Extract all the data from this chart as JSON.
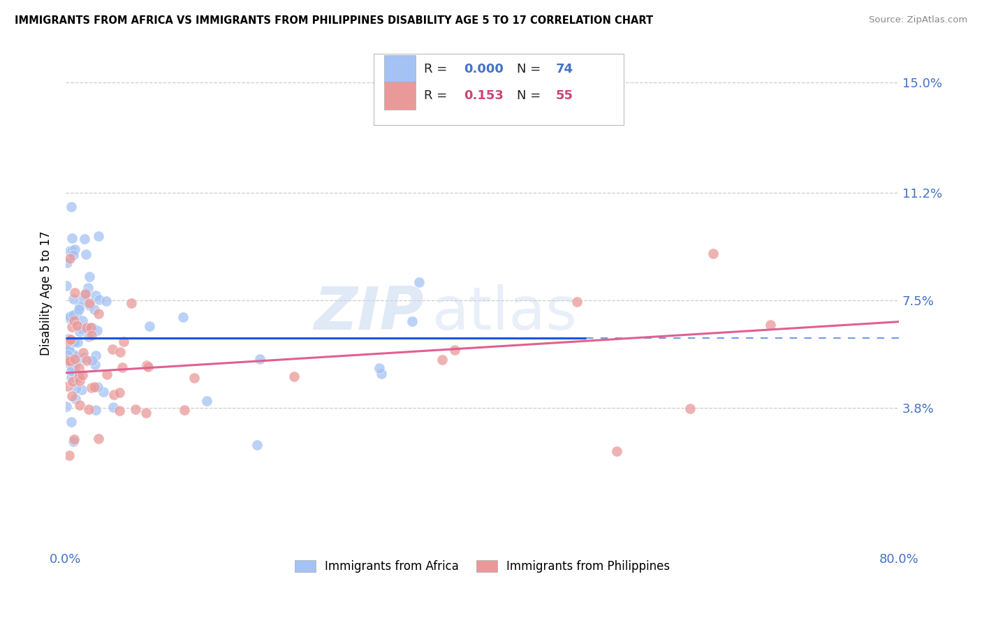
{
  "title": "IMMIGRANTS FROM AFRICA VS IMMIGRANTS FROM PHILIPPINES DISABILITY AGE 5 TO 17 CORRELATION CHART",
  "source": "Source: ZipAtlas.com",
  "ylabel": "Disability Age 5 to 17",
  "xlim": [
    0.0,
    0.8
  ],
  "ylim": [
    -0.01,
    0.165
  ],
  "r_africa": "0.000",
  "n_africa": "74",
  "r_philippines": "0.153",
  "n_philippines": "55",
  "color_africa": "#a4c2f4",
  "color_philippines": "#ea9999",
  "trend_africa_color": "#1a56db",
  "trend_philippines_color": "#e06090",
  "watermark_text": "ZIP",
  "watermark_text2": "atlas",
  "legend_label_africa": "Immigrants from Africa",
  "legend_label_philippines": "Immigrants from Philippines",
  "ytick_positions": [
    0.038,
    0.075,
    0.112,
    0.15
  ],
  "ytick_labels": [
    "3.8%",
    "7.5%",
    "11.2%",
    "15.0%"
  ],
  "africa_trend_y": 0.062,
  "africa_trend_x_solid_end": 0.5,
  "ph_trend_intercept": 0.05,
  "ph_trend_slope": 0.022
}
